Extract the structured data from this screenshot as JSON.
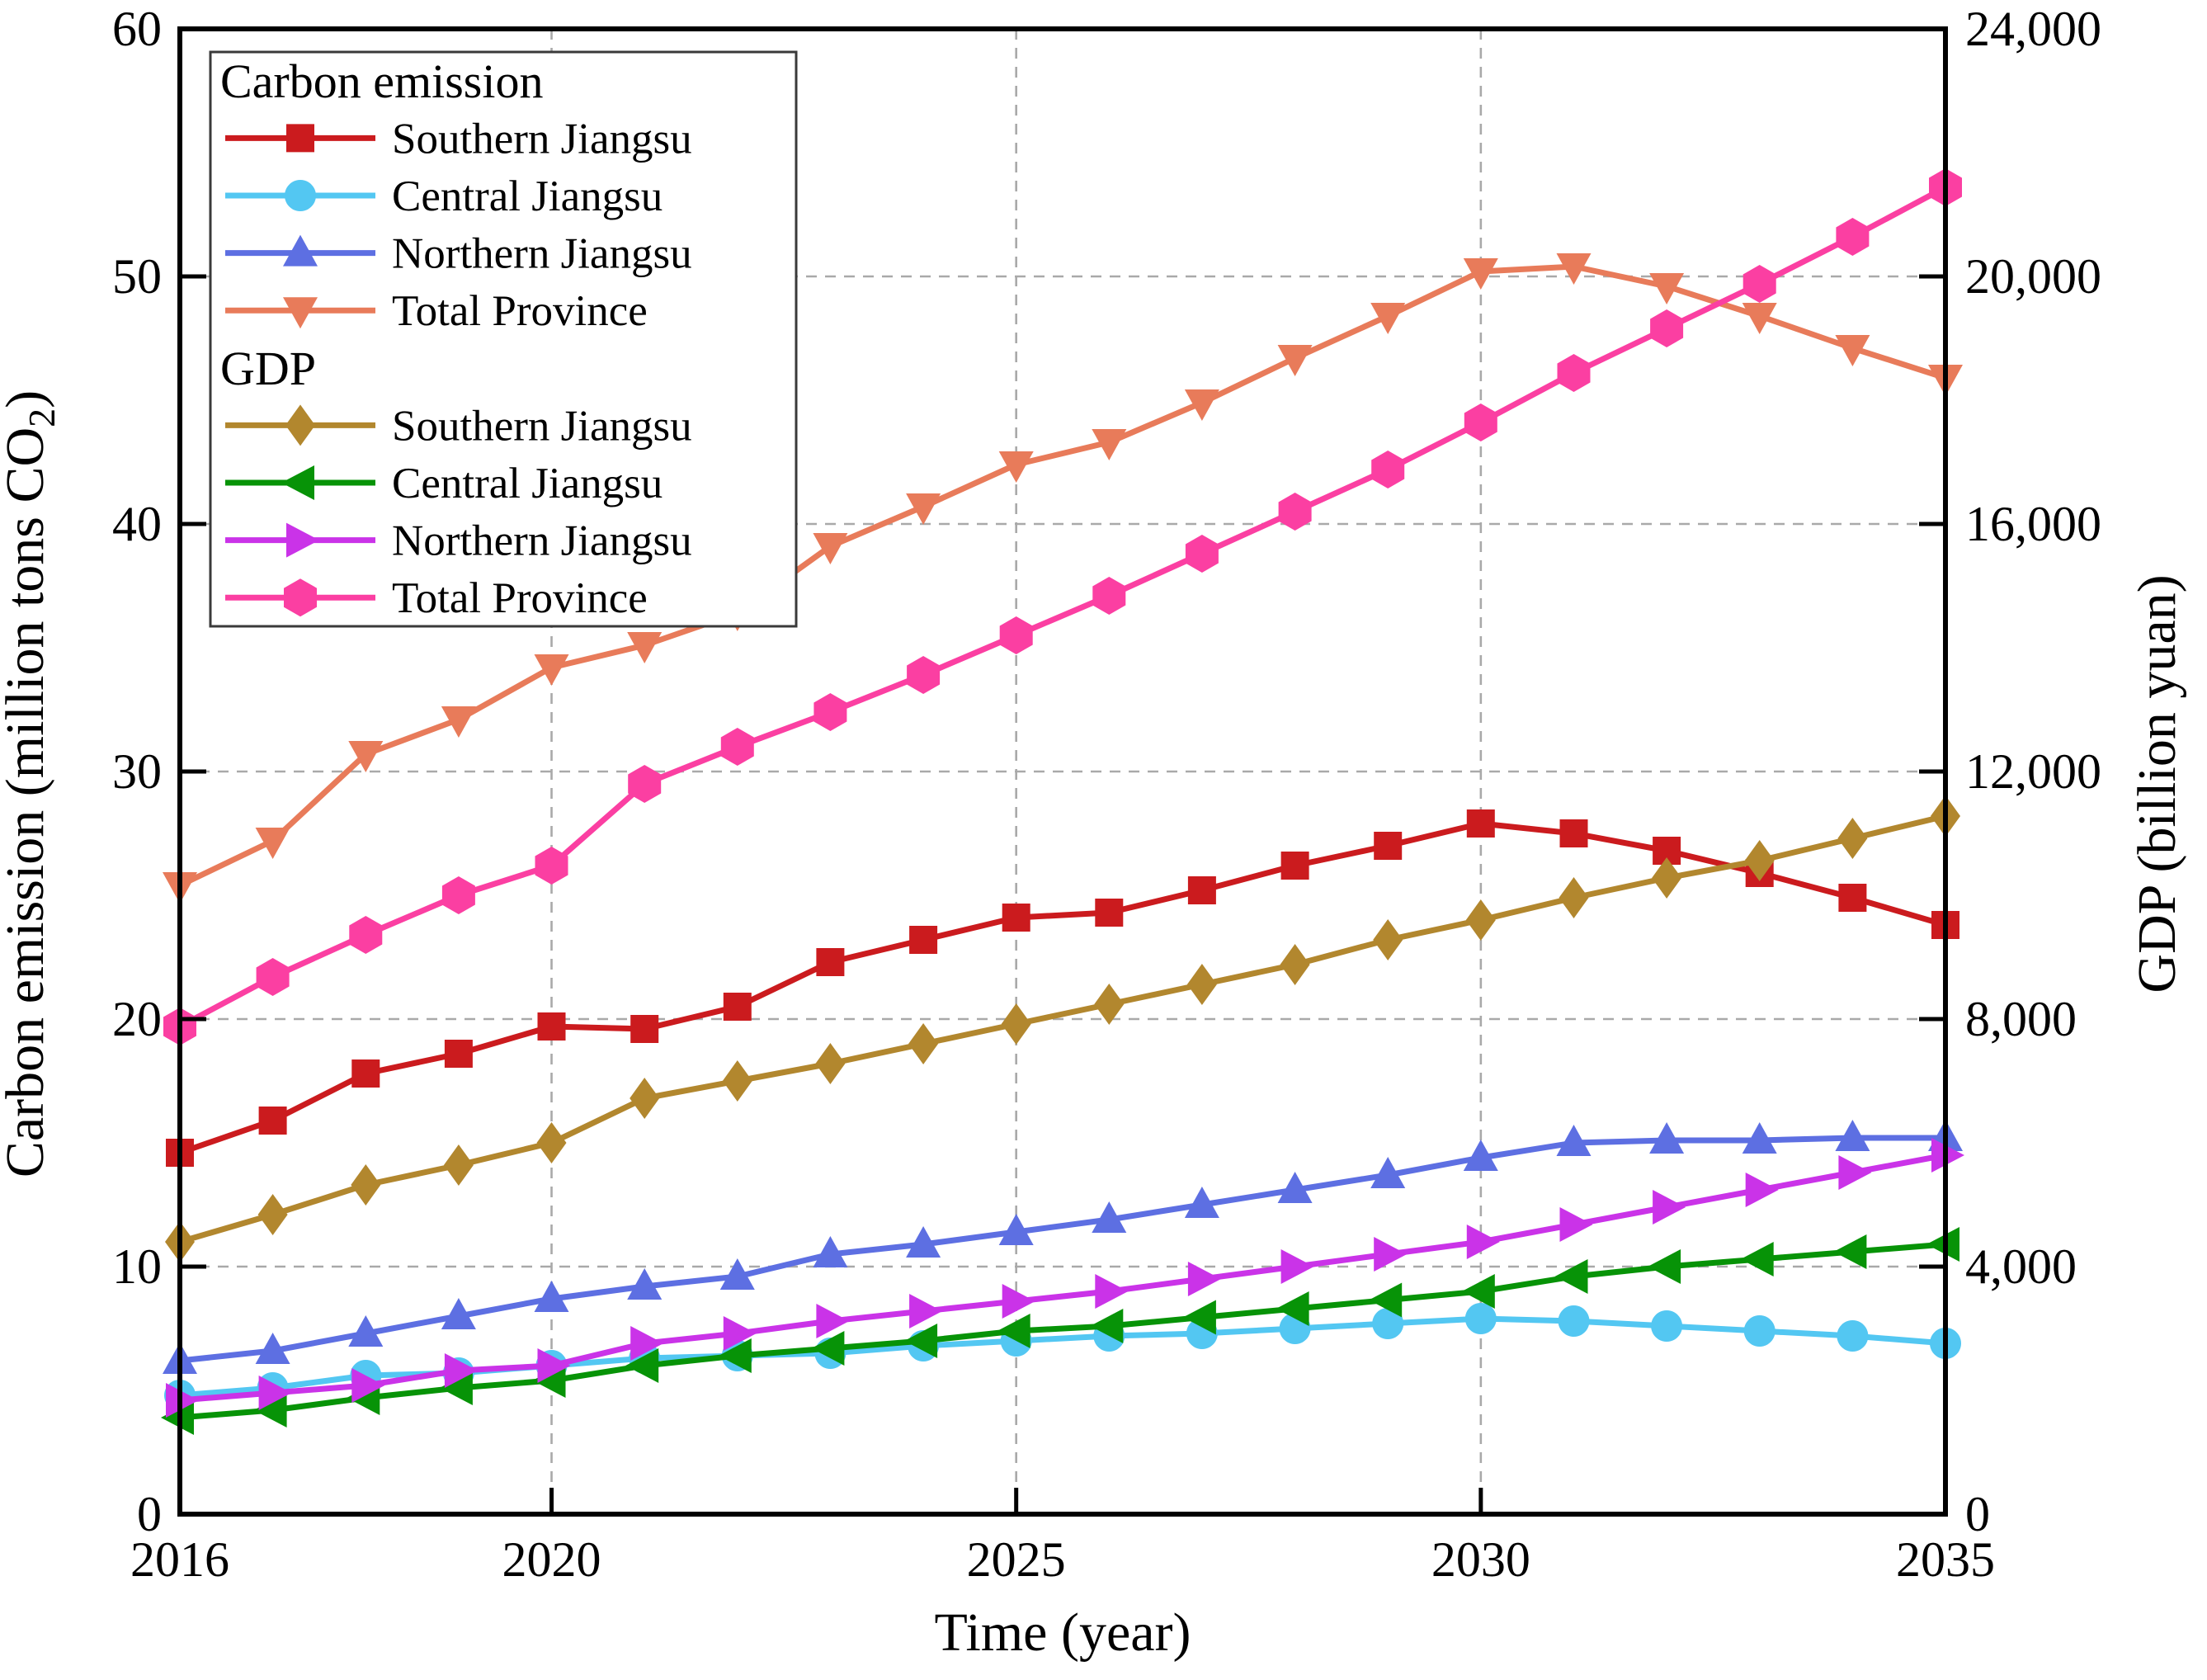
{
  "figure": {
    "background": "#ffffff"
  },
  "chart_data": {
    "type": "line",
    "title": "",
    "x": [
      2016,
      2017,
      2018,
      2019,
      2020,
      2021,
      2022,
      2023,
      2024,
      2025,
      2026,
      2027,
      2028,
      2029,
      2030,
      2031,
      2032,
      2033,
      2034,
      2035
    ],
    "x_tick_values": [
      2016,
      2020,
      2025,
      2030,
      2035
    ],
    "x_tick_labels": [
      "2016",
      "2020",
      "2025",
      "2030",
      "2035"
    ],
    "xlabel": "Time (year)",
    "grid": "on-dashed",
    "legend_position": "upper-left",
    "axes": {
      "left": {
        "title": "Carbon emission (million tons CO₂)",
        "title_parts": [
          "Carbon emission (million tons CO",
          "2",
          ")"
        ],
        "min": 0,
        "max": 60,
        "ticks": [
          0,
          10,
          20,
          30,
          40,
          50,
          60
        ],
        "tick_labels": [
          "0",
          "10",
          "20",
          "30",
          "40",
          "50",
          "60"
        ]
      },
      "right": {
        "title": "GDP (billion yuan)",
        "min": 0,
        "max": 24000,
        "ticks": [
          0,
          4000,
          8000,
          12000,
          16000,
          20000,
          24000
        ],
        "tick_labels": [
          "0",
          "4,000",
          "8,000",
          "12,000",
          "16,000",
          "20,000",
          "24,000"
        ]
      },
      "bottom": {
        "title": "Time (year)"
      }
    },
    "legend": {
      "groups": [
        {
          "title": "Carbon emission",
          "series_ids": [
            "ce_southern",
            "ce_central",
            "ce_northern",
            "ce_total"
          ]
        },
        {
          "title": "GDP",
          "series_ids": [
            "gdp_southern",
            "gdp_central",
            "gdp_northern",
            "gdp_total"
          ]
        }
      ]
    },
    "series": [
      {
        "id": "ce_southern",
        "group": "Carbon emission",
        "name": "Southern Jiangsu",
        "axis": "left",
        "marker": "square",
        "color": "#cb1b1e",
        "values": [
          14.6,
          15.9,
          17.8,
          18.6,
          19.7,
          19.6,
          20.5,
          22.3,
          23.2,
          24.1,
          24.3,
          25.2,
          26.2,
          27.0,
          27.9,
          27.5,
          26.8,
          25.9,
          24.9,
          23.8
        ]
      },
      {
        "id": "ce_central",
        "group": "Carbon emission",
        "name": "Central Jiangsu",
        "axis": "left",
        "marker": "circle",
        "color": "#53c7f2",
        "values": [
          4.8,
          5.1,
          5.6,
          5.7,
          6.0,
          6.3,
          6.4,
          6.5,
          6.8,
          7.0,
          7.2,
          7.3,
          7.5,
          7.7,
          7.9,
          7.8,
          7.6,
          7.4,
          7.2,
          6.9
        ]
      },
      {
        "id": "ce_northern",
        "group": "Carbon emission",
        "name": "Northern Jiangsu",
        "axis": "left",
        "marker": "triangle-up",
        "color": "#5d6fe2",
        "values": [
          6.2,
          6.6,
          7.3,
          8.0,
          8.7,
          9.2,
          9.6,
          10.5,
          10.9,
          11.4,
          11.9,
          12.5,
          13.1,
          13.7,
          14.4,
          15.0,
          15.1,
          15.1,
          15.2,
          15.2
        ]
      },
      {
        "id": "ce_total",
        "group": "Carbon emission",
        "name": "Total Province",
        "axis": "left",
        "marker": "triangle-down",
        "color": "#e87b5a",
        "values": [
          25.4,
          27.2,
          30.7,
          32.1,
          34.2,
          35.1,
          36.4,
          39.1,
          40.7,
          42.4,
          43.3,
          44.9,
          46.7,
          48.4,
          50.2,
          50.4,
          49.6,
          48.4,
          47.1,
          45.9
        ]
      },
      {
        "id": "gdp_southern",
        "group": "GDP",
        "name": "Southern Jiangsu",
        "axis": "right",
        "marker": "diamond",
        "color": "#b2872e",
        "values": [
          4400,
          4840,
          5320,
          5640,
          6000,
          6720,
          7000,
          7280,
          7600,
          7920,
          8240,
          8560,
          8880,
          9280,
          9600,
          9960,
          10280,
          10560,
          10920,
          11280
        ]
      },
      {
        "id": "gdp_central",
        "group": "GDP",
        "name": "Central Jiangsu",
        "axis": "right",
        "marker": "triangle-left",
        "color": "#079307",
        "values": [
          1560,
          1680,
          1880,
          2040,
          2160,
          2400,
          2560,
          2680,
          2800,
          2960,
          3040,
          3180,
          3320,
          3460,
          3600,
          3840,
          4000,
          4120,
          4240,
          4360
        ]
      },
      {
        "id": "gdp_northern",
        "group": "GDP",
        "name": "Northern Jiangsu",
        "axis": "right",
        "marker": "triangle-right",
        "color": "#ca33e8",
        "values": [
          1840,
          1960,
          2080,
          2320,
          2400,
          2760,
          2920,
          3120,
          3280,
          3440,
          3600,
          3800,
          4000,
          4200,
          4400,
          4680,
          4960,
          5240,
          5520,
          5800
        ]
      },
      {
        "id": "gdp_total",
        "group": "GDP",
        "name": "Total Province",
        "axis": "right",
        "marker": "hexagon",
        "color": "#fb3fa2",
        "values": [
          7880,
          8680,
          9360,
          10000,
          10480,
          11800,
          12400,
          12960,
          13560,
          14200,
          14840,
          15520,
          16200,
          16880,
          17640,
          18440,
          19160,
          19880,
          20640,
          21440
        ]
      }
    ]
  }
}
